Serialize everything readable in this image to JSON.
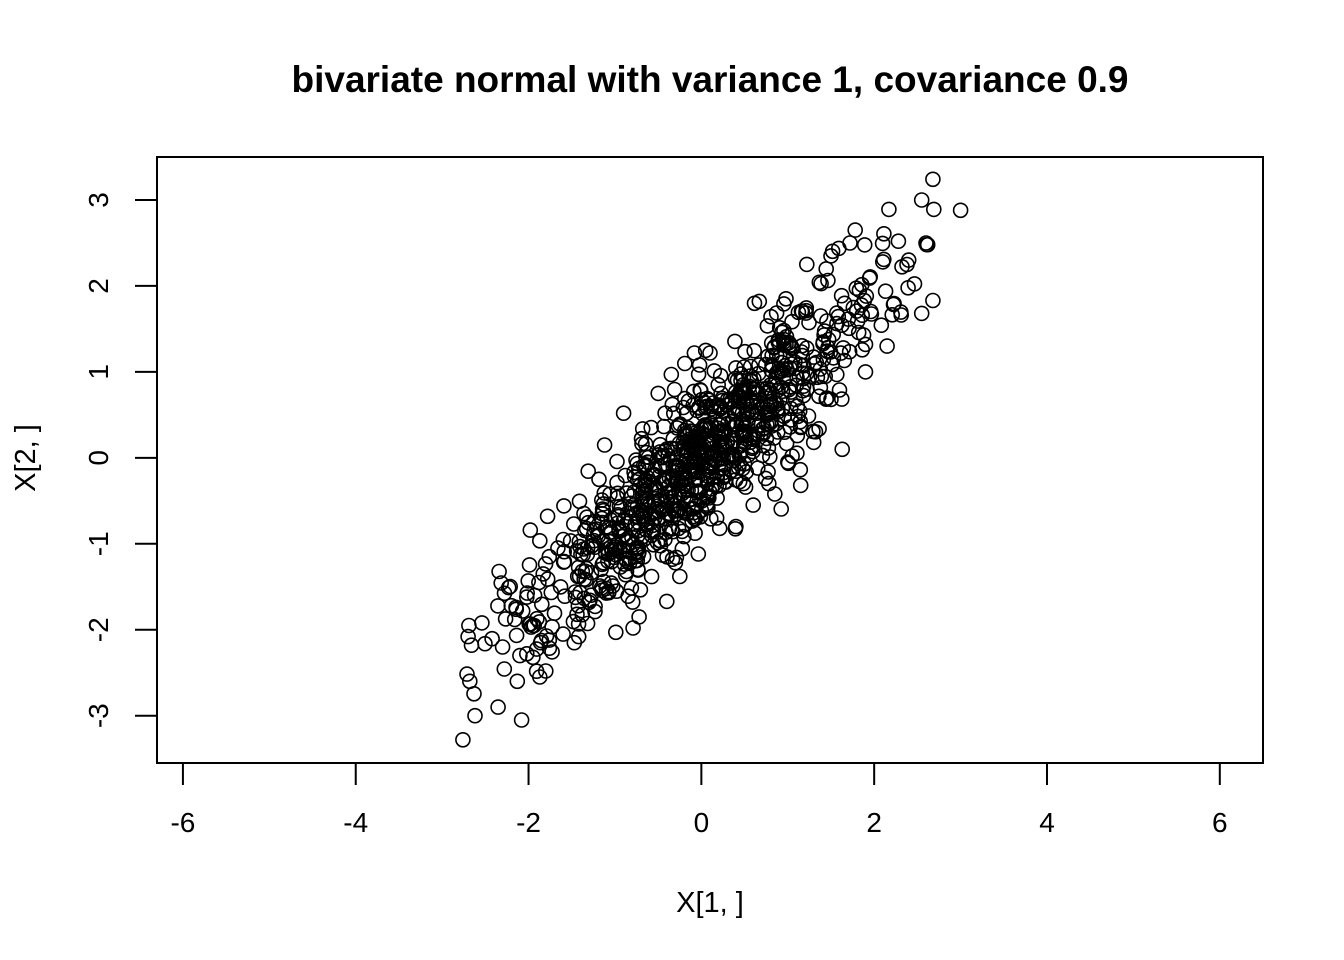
{
  "chart_data": {
    "type": "scatter",
    "title": "bivariate normal with variance 1, covariance 0.9",
    "xlabel": "X[1, ]",
    "ylabel": "X[2, ]",
    "xlim": [
      -6.3,
      6.5
    ],
    "ylim": [
      -3.55,
      3.5
    ],
    "xticks": [
      -6,
      -4,
      -2,
      0,
      2,
      4,
      6
    ],
    "yticks": [
      -3,
      -2,
      -1,
      0,
      1,
      2,
      3
    ],
    "xtick_labels": [
      "-6",
      "-4",
      "-2",
      "0",
      "2",
      "4",
      "6"
    ],
    "ytick_labels": [
      "-3",
      "-2",
      "-1",
      "0",
      "1",
      "2",
      "3"
    ],
    "n_points": 1000,
    "distribution": {
      "mean": [
        0,
        0
      ],
      "variance": 1,
      "covariance": 0.9,
      "seed": 42
    },
    "points": [
      [
        -2.76,
        -3.28
      ],
      [
        -2.62,
        -3.0
      ],
      [
        -2.08,
        -3.05
      ],
      [
        -2.68,
        -2.6
      ],
      [
        -2.13,
        -2.6
      ],
      [
        -1.87,
        -2.55
      ],
      [
        -1.8,
        -2.48
      ],
      [
        -2.7,
        -2.08
      ],
      [
        -2.66,
        -2.18
      ],
      [
        -2.69,
        -1.95
      ],
      [
        -2.54,
        -1.92
      ],
      [
        -2.3,
        -2.2
      ],
      [
        -2.1,
        -2.3
      ],
      [
        -2.02,
        -2.28
      ],
      [
        -1.95,
        -2.32
      ],
      [
        -2.16,
        -1.88
      ],
      [
        -2.2,
        -1.72
      ],
      [
        -2.23,
        -1.51
      ],
      [
        -2.02,
        -1.62
      ],
      [
        -1.95,
        -1.95
      ],
      [
        -1.86,
        -2.15
      ],
      [
        -1.76,
        -2.12
      ],
      [
        -1.6,
        -2.05
      ],
      [
        -1.47,
        -2.15
      ],
      [
        -1.42,
        -2.08
      ],
      [
        -1.93,
        -1.6
      ],
      [
        -1.88,
        -1.45
      ],
      [
        -1.83,
        -1.35
      ],
      [
        -1.76,
        -1.15
      ],
      [
        -1.66,
        -1.05
      ],
      [
        -1.78,
        -0.68
      ],
      [
        -1.98,
        -0.84
      ],
      [
        -0.9,
        0.52
      ],
      [
        -1.12,
        0.15
      ],
      [
        -0.99,
        -2.03
      ],
      [
        -0.79,
        -1.98
      ],
      [
        -0.72,
        -1.85
      ],
      [
        -0.4,
        -1.67
      ],
      [
        -1.1,
        -1.52
      ],
      [
        -1.3,
        -1.68
      ],
      [
        -0.5,
        0.75
      ],
      [
        -0.42,
        0.52
      ],
      [
        -0.08,
        1.22
      ],
      [
        0.05,
        1.25
      ],
      [
        0.1,
        1.22
      ],
      [
        -0.02,
        1.08
      ],
      [
        0.4,
        -0.8
      ],
      [
        0.6,
        -0.55
      ],
      [
        1.0,
        -0.05
      ],
      [
        1.05,
        0.02
      ],
      [
        1.15,
        -0.32
      ],
      [
        1.3,
        0.18
      ],
      [
        1.63,
        0.1
      ],
      [
        1.9,
        1.0
      ],
      [
        1.5,
        0.68
      ],
      [
        0.85,
        -0.42
      ],
      [
        0.78,
        -0.3
      ],
      [
        2.68,
        3.24
      ],
      [
        2.17,
        2.89
      ],
      [
        2.55,
        3.0
      ],
      [
        2.69,
        2.89
      ],
      [
        3.0,
        2.88
      ],
      [
        1.78,
        2.65
      ],
      [
        1.72,
        2.5
      ],
      [
        1.5,
        2.35
      ],
      [
        1.22,
        2.25
      ],
      [
        2.6,
        2.5
      ],
      [
        2.62,
        2.48
      ],
      [
        2.28,
        2.52
      ],
      [
        2.4,
        2.3
      ],
      [
        2.1,
        2.28
      ],
      [
        2.68,
        1.83
      ],
      [
        2.55,
        1.68
      ],
      [
        0.67,
        1.82
      ],
      [
        0.98,
        1.85
      ],
      [
        2.15,
        1.3
      ],
      [
        1.9,
        1.32
      ],
      [
        -0.62,
        -0.05
      ],
      [
        -0.25,
        -1.38
      ],
      [
        -0.3,
        -1.22
      ]
    ]
  }
}
